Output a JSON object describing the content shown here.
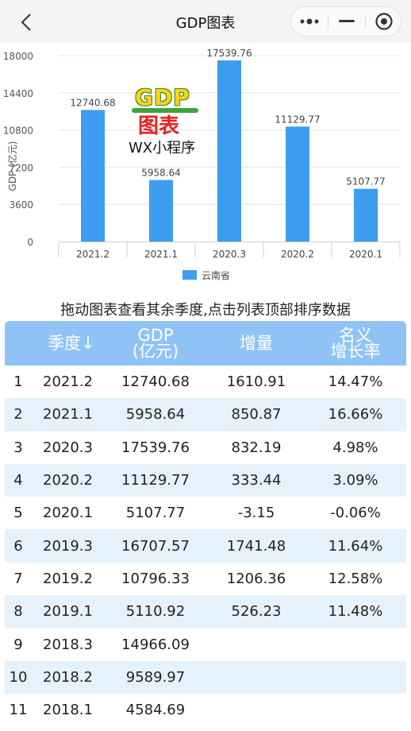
{
  "navbar": {
    "title": "GDP图表",
    "back_icon": "chevron-left-icon",
    "more_icon": "more-dots-icon",
    "minimize_icon": "minus-icon",
    "close_icon": "target-circle-icon"
  },
  "logo": {
    "text_top": "GDP",
    "text_mid": "图表",
    "text_bottom": "WX小程序"
  },
  "chart_data": {
    "type": "bar",
    "categories": [
      "2021.2",
      "2021.1",
      "2020.3",
      "2020.2",
      "2020.1"
    ],
    "series": [
      {
        "name": "云南省",
        "values": [
          12740.68,
          5958.64,
          17539.76,
          11129.77,
          5107.77
        ],
        "color": "#3d9df0"
      }
    ],
    "ylabel": "GDP (亿元)",
    "yticks": [
      "18000",
      "14400",
      "10800",
      "7200",
      "3600",
      "0"
    ],
    "ylim": [
      0,
      18000
    ],
    "grid": true,
    "legend": "bottom",
    "data_labels": [
      "12740.68",
      "5958.64",
      "17539.76",
      "11129.77",
      "5107.77"
    ]
  },
  "hint": "拖动图表查看其余季度,点击列表顶部排序数据",
  "table": {
    "headers": {
      "quarter": "季度↓",
      "gdp_line1": "GDP",
      "gdp_line2": "(亿元)",
      "increase": "增量",
      "rate_line1": "名义",
      "rate_line2": "增长率"
    },
    "rows": [
      {
        "idx": "1",
        "quarter": "2021.2",
        "gdp": "12740.68",
        "increase": "1610.91",
        "rate": "14.47%"
      },
      {
        "idx": "2",
        "quarter": "2021.1",
        "gdp": "5958.64",
        "increase": "850.87",
        "rate": "16.66%"
      },
      {
        "idx": "3",
        "quarter": "2020.3",
        "gdp": "17539.76",
        "increase": "832.19",
        "rate": "4.98%"
      },
      {
        "idx": "4",
        "quarter": "2020.2",
        "gdp": "11129.77",
        "increase": "333.44",
        "rate": "3.09%"
      },
      {
        "idx": "5",
        "quarter": "2020.1",
        "gdp": "5107.77",
        "increase": "-3.15",
        "rate": "-0.06%"
      },
      {
        "idx": "6",
        "quarter": "2019.3",
        "gdp": "16707.57",
        "increase": "1741.48",
        "rate": "11.64%"
      },
      {
        "idx": "7",
        "quarter": "2019.2",
        "gdp": "10796.33",
        "increase": "1206.36",
        "rate": "12.58%"
      },
      {
        "idx": "8",
        "quarter": "2019.1",
        "gdp": "5110.92",
        "increase": "526.23",
        "rate": "11.48%"
      },
      {
        "idx": "9",
        "quarter": "2018.3",
        "gdp": "14966.09",
        "increase": "",
        "rate": ""
      },
      {
        "idx": "10",
        "quarter": "2018.2",
        "gdp": "9589.97",
        "increase": "",
        "rate": ""
      },
      {
        "idx": "11",
        "quarter": "2018.1",
        "gdp": "4584.69",
        "increase": "",
        "rate": ""
      }
    ]
  }
}
